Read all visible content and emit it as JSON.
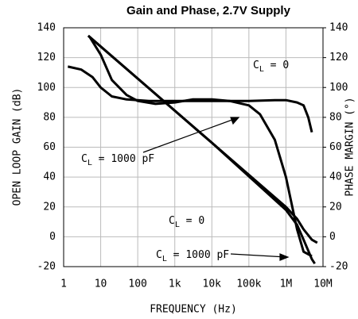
{
  "chart_data": {
    "type": "line",
    "title": "Gain and Phase, 2.7V Supply",
    "x_label": "FREQUENCY (Hz)",
    "y_label": "OPEN LOOP GAIN (dB)",
    "y2_label": "PHASE MARGIN (°)",
    "xscale": "log",
    "grid": true,
    "xlim": [
      1,
      10000000
    ],
    "xticks": [
      1,
      10,
      100,
      {
        "value": 1000,
        "label": "1k"
      },
      {
        "value": 10000,
        "label": "10k"
      },
      {
        "value": 100000,
        "label": "100k"
      },
      {
        "value": 1000000,
        "label": "1M"
      },
      {
        "value": 10000000,
        "label": "10M"
      }
    ],
    "ylim": [
      -20,
      140
    ],
    "yticks": [
      -20,
      0,
      20,
      40,
      60,
      80,
      100,
      120,
      140
    ],
    "y2lim": [
      -20,
      140
    ],
    "y2ticks": [
      -20,
      0,
      20,
      40,
      60,
      80,
      100,
      120,
      140
    ],
    "series": [
      {
        "name": "Phase CL = 0",
        "color": "#000000",
        "axis": "y2",
        "x": [
          1.3,
          3,
          6,
          10,
          20,
          50,
          200,
          1000,
          10000,
          100000,
          500000,
          1000000,
          2000000,
          3000000,
          4000000,
          5000000
        ],
        "values": [
          114,
          112,
          107,
          100,
          94,
          92,
          91,
          91,
          91,
          91,
          91.5,
          91.5,
          90,
          88,
          80,
          70
        ]
      },
      {
        "name": "Phase CL = 1000 pF",
        "color": "#000000",
        "axis": "y2",
        "x": [
          5,
          10,
          20,
          50,
          100,
          300,
          1000,
          3000,
          10000,
          30000,
          100000,
          200000,
          500000,
          1000000,
          2000000,
          3000000,
          5000000
        ],
        "values": [
          134,
          122,
          105,
          95,
          91,
          89,
          90,
          92,
          92,
          91,
          88,
          82,
          65,
          40,
          5,
          -10,
          -13
        ]
      },
      {
        "name": "Gain CL = 0",
        "color": "#000000",
        "x": [
          4.6,
          100,
          10000,
          1000000,
          2000000,
          3000000,
          5000000,
          7000000
        ],
        "values": [
          134.7,
          106,
          63,
          20,
          12,
          5,
          -2,
          -4
        ]
      },
      {
        "name": "Gain CL = 1000 pF",
        "color": "#000000",
        "x": [
          4.6,
          100,
          10000,
          1000000,
          2000000,
          3000000,
          5000000,
          6000000
        ],
        "values": [
          134.7,
          106,
          63,
          18,
          8,
          -2,
          -15,
          -18
        ]
      }
    ],
    "annotations": [
      {
        "parts": [
          "C",
          "L",
          " = 0"
        ]
      },
      {
        "parts": [
          "C",
          "L",
          " = 1000 pF"
        ]
      },
      {
        "parts": [
          "C",
          "L",
          " = 0"
        ]
      },
      {
        "parts": [
          "C",
          "L",
          " = 1000 pF"
        ]
      }
    ]
  }
}
